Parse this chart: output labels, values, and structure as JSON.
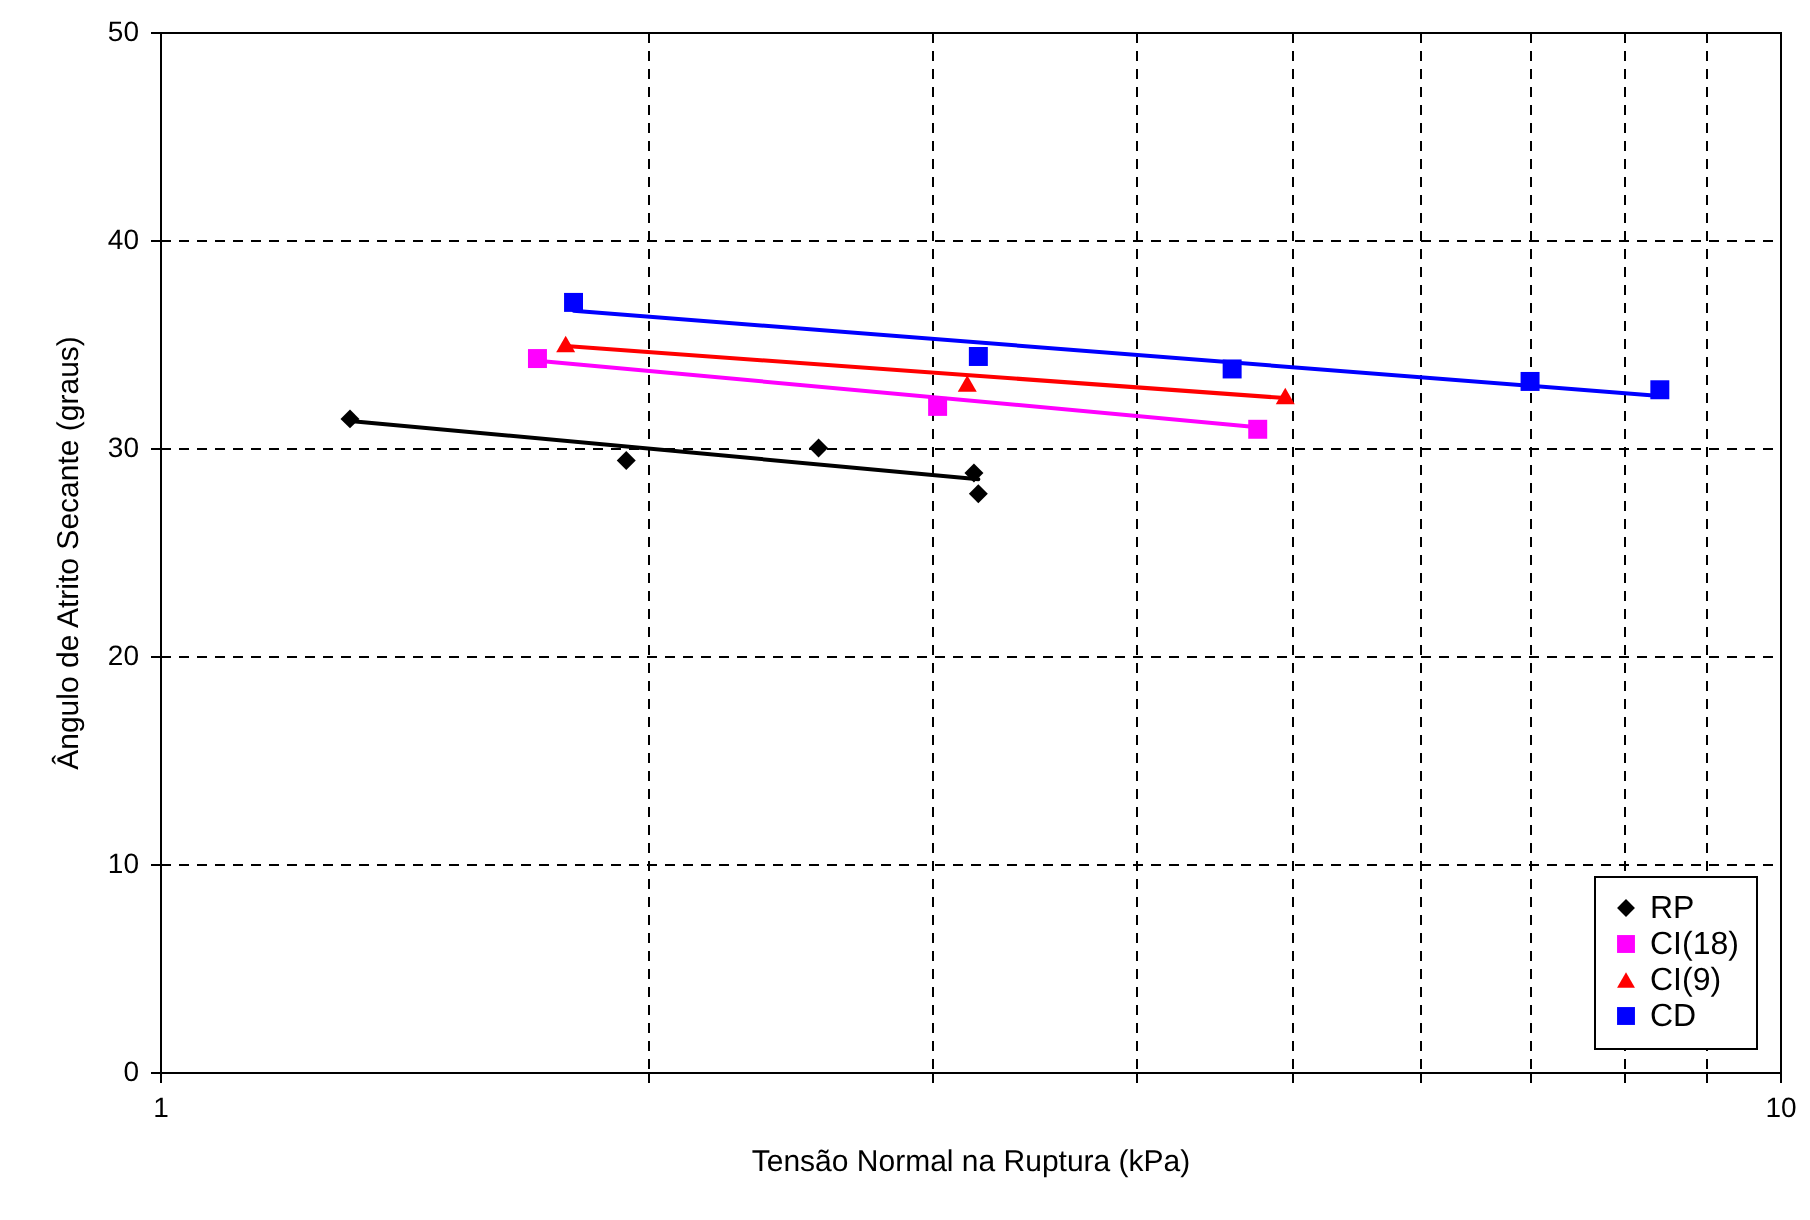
{
  "chart_data": {
    "type": "scatter",
    "xlabel": "Tensão Normal na Ruptura (kPa)",
    "ylabel": "Ângulo de Atrito Secante (graus)",
    "log": "x",
    "xlim": [
      1,
      10
    ],
    "xticks": [
      1,
      {
        "value": 2,
        "label": null
      },
      {
        "value": 3,
        "label": null
      },
      {
        "value": 4,
        "label": null
      },
      {
        "value": 5,
        "label": null
      },
      {
        "value": 6,
        "label": null
      },
      {
        "value": 7,
        "label": null
      },
      {
        "value": 8,
        "label": null
      },
      {
        "value": 9,
        "label": null
      },
      10
    ],
    "ylim": [
      0,
      50
    ],
    "yticks": [
      0,
      10,
      20,
      30,
      40,
      50
    ],
    "grid": true,
    "legend": "bottom right",
    "series": [
      {
        "name": "RP",
        "marker": "diamond",
        "color": "#000000",
        "x": [
          1.31,
          1.94,
          2.55,
          3.18,
          3.2
        ],
        "values": [
          31.4,
          29.4,
          30.0,
          28.8,
          27.8
        ]
      },
      {
        "name": "CI(18)",
        "marker": "square",
        "color": "#ff00ff",
        "x": [
          1.71,
          3.02,
          4.76
        ],
        "values": [
          34.3,
          32.0,
          30.9
        ]
      },
      {
        "name": "CI(9)",
        "marker": "triangle",
        "color": "#ff0000",
        "x": [
          1.78,
          3.15,
          4.95
        ],
        "values": [
          35.0,
          33.1,
          32.5
        ]
      },
      {
        "name": "CD",
        "marker": "square",
        "color": "#0000ff",
        "x": [
          1.8,
          3.2,
          4.59,
          7.01,
          8.43
        ],
        "values": [
          37.0,
          34.4,
          33.8,
          33.2,
          32.8
        ]
      },
      {
        "type": "line",
        "marker": "none",
        "color": "#000000",
        "x": [
          1.31,
          3.2
        ],
        "values": [
          31.3,
          28.5
        ]
      },
      {
        "type": "line",
        "marker": "none",
        "color": "#ff00ff",
        "x": [
          1.71,
          4.76
        ],
        "values": [
          34.2,
          31.0
        ]
      },
      {
        "type": "line",
        "marker": "none",
        "color": "#ff0000",
        "x": [
          1.78,
          4.95
        ],
        "values": [
          34.9,
          32.4
        ]
      },
      {
        "type": "line",
        "marker": "none",
        "color": "#0000ff",
        "x": [
          1.8,
          8.43
        ],
        "values": [
          36.6,
          32.5
        ]
      }
    ]
  }
}
